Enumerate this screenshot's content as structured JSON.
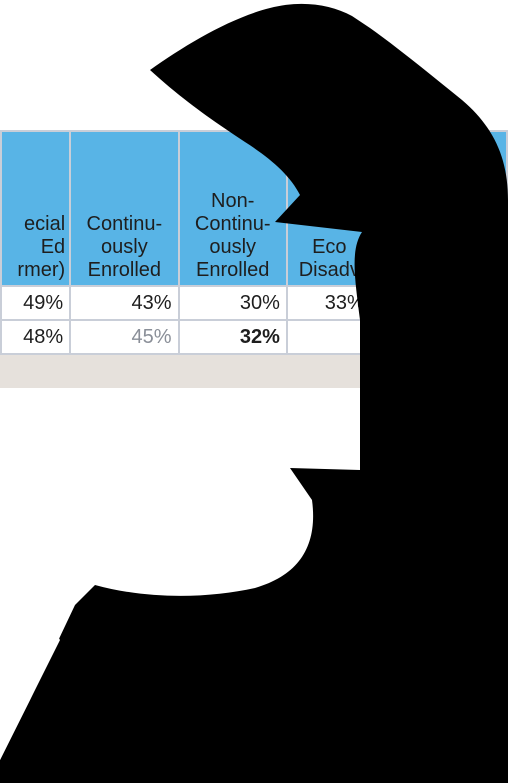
{
  "table": {
    "headers": [
      {
        "lines": [
          "ecial",
          "Ed",
          "rmer)"
        ]
      },
      {
        "lines": [
          "Continu-",
          "ously",
          "Enrolled"
        ]
      },
      {
        "lines": [
          "Non-",
          "Continu-",
          "ously",
          "Enrolled"
        ]
      },
      {
        "lines": [
          "Eco",
          "Disadv"
        ]
      },
      {
        "lines": [
          ""
        ]
      }
    ],
    "rows": [
      [
        "49%",
        "43%",
        "30%",
        "33%",
        ""
      ],
      [
        "48%",
        "45%",
        "32%",
        "",
        ""
      ]
    ]
  }
}
